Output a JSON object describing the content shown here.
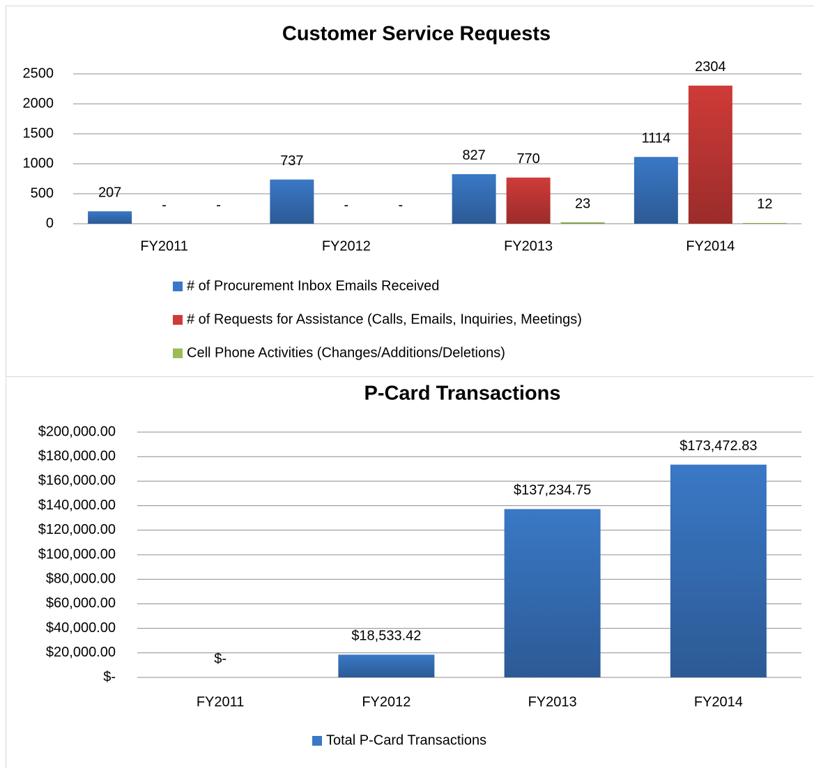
{
  "chart_data": [
    {
      "type": "bar",
      "title": "Customer Service Requests",
      "categories": [
        "FY2011",
        "FY2012",
        "FY2013",
        "FY2014"
      ],
      "series": [
        {
          "name": "# of Procurement Inbox Emails Received",
          "color": "#3a78c6",
          "values": [
            207,
            737,
            827,
            1114
          ]
        },
        {
          "name": "# of Requests for Assistance (Calls, Emails, Inquiries, Meetings)",
          "color": "#cf3b38",
          "values": [
            0,
            0,
            770,
            2304
          ],
          "value_labels": [
            "-",
            "-",
            "770",
            "2304"
          ]
        },
        {
          "name": "Cell Phone Activities (Changes/Additions/Deletions)",
          "color": "#9bbb59",
          "values": [
            0,
            0,
            23,
            12
          ],
          "value_labels": [
            "-",
            "-",
            "23",
            "12"
          ]
        }
      ],
      "ylim": [
        0,
        2500
      ],
      "yticks": [
        0,
        500,
        1000,
        1500,
        2000,
        2500
      ],
      "grid": true,
      "legend": "bottom"
    },
    {
      "type": "bar",
      "title": "P-Card Transactions",
      "categories": [
        "FY2011",
        "FY2012",
        "FY2013",
        "FY2014"
      ],
      "series": [
        {
          "name": "Total P-Card Transactions",
          "color": "#3a78c6",
          "values": [
            0,
            18533.42,
            137234.75,
            173472.83
          ],
          "value_labels": [
            "$-",
            "$18,533.42",
            "$137,234.75",
            "$173,472.83"
          ]
        }
      ],
      "ylim": [
        0,
        200000
      ],
      "yticks": [
        {
          "value": 0,
          "label": "$-"
        },
        {
          "value": 20000,
          "label": "$20,000.00"
        },
        {
          "value": 40000,
          "label": "$40,000.00"
        },
        {
          "value": 60000,
          "label": "$60,000.00"
        },
        {
          "value": 80000,
          "label": "$80,000.00"
        },
        {
          "value": 100000,
          "label": "$100,000.00"
        },
        {
          "value": 120000,
          "label": "$120,000.00"
        },
        {
          "value": 140000,
          "label": "$140,000.00"
        },
        {
          "value": 160000,
          "label": "$160,000.00"
        },
        {
          "value": 180000,
          "label": "$180,000.00"
        },
        {
          "value": 200000,
          "label": "$200,000.00"
        }
      ],
      "grid": true,
      "legend": "bottom"
    }
  ]
}
